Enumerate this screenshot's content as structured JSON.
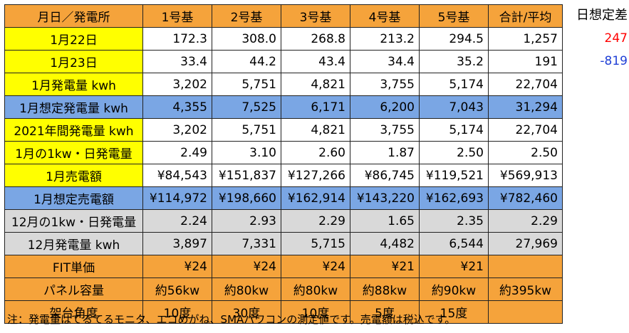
{
  "table": {
    "headers": [
      "月日／発電所",
      "1号基",
      "2号基",
      "3号基",
      "4号基",
      "5号基",
      "合計/平均"
    ],
    "rows": [
      {
        "style": "yellow",
        "label": "1月22日",
        "values": [
          "172.3",
          "308.0",
          "268.8",
          "213.2",
          "294.5",
          "1,257"
        ]
      },
      {
        "style": "yellow",
        "label": "1月23日",
        "values": [
          "33.4",
          "44.2",
          "43.4",
          "34.4",
          "35.2",
          "191"
        ]
      },
      {
        "style": "yellow",
        "label": "1月発電量 kwh",
        "values": [
          "3,202",
          "5,751",
          "4,821",
          "3,755",
          "5,174",
          "22,704"
        ]
      },
      {
        "style": "blue",
        "label": "1月想定発電量 kwh",
        "values": [
          "4,355",
          "7,525",
          "6,171",
          "6,200",
          "7,043",
          "31,294"
        ]
      },
      {
        "style": "yellow",
        "label": "2021年間発電量 kwh",
        "values": [
          "3,202",
          "5,751",
          "4,821",
          "3,755",
          "5,174",
          "22,704"
        ]
      },
      {
        "style": "yellow",
        "label": "1月の1kw・日発電量",
        "values": [
          "2.49",
          "3.10",
          "2.60",
          "1.87",
          "2.50",
          "2.50"
        ]
      },
      {
        "style": "yellow",
        "label": "1月売電額",
        "values": [
          "¥84,543",
          "¥151,837",
          "¥127,266",
          "¥86,745",
          "¥119,521",
          "¥569,913"
        ]
      },
      {
        "style": "blue",
        "label": "1月想定売電額",
        "values": [
          "¥114,972",
          "¥198,660",
          "¥162,914",
          "¥143,220",
          "¥162,693",
          "¥782,460"
        ]
      },
      {
        "style": "gray",
        "label": "12月の1kw・日発電量",
        "values": [
          "2.24",
          "2.93",
          "2.29",
          "1.65",
          "2.35",
          "2.29"
        ]
      },
      {
        "style": "gray",
        "label": "12月発電量 kwh",
        "values": [
          "3,897",
          "7,331",
          "5,715",
          "4,482",
          "6,544",
          "27,969"
        ]
      },
      {
        "style": "orange",
        "label": "FIT単価",
        "values": [
          "¥24",
          "¥24",
          "¥24",
          "¥21",
          "¥21",
          ""
        ]
      },
      {
        "style": "orange",
        "label": "パネル容量",
        "values": [
          "約56kw",
          "約80kw",
          "約80kw",
          "約88kw",
          "約90kw",
          "約395kw"
        ],
        "center": true
      },
      {
        "style": "orange",
        "label": "架台角度",
        "values": [
          "10度",
          "30度",
          "10度",
          "5度",
          "15度",
          ""
        ],
        "center": true
      }
    ]
  },
  "side": {
    "title": "日想定差",
    "values": [
      {
        "text": "247",
        "color": "#ff0000"
      },
      {
        "text": "-819",
        "color": "#1f3fd6"
      }
    ]
  },
  "note": "注：発電量はてるてるモニタ、エコめがね、SMAパワコンの測定値です。売電額は税込です。"
}
